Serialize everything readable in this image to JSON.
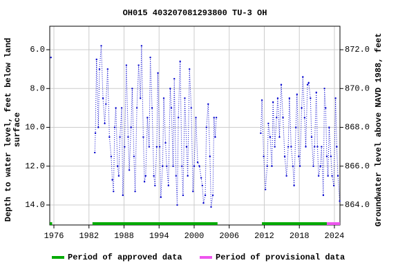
{
  "chart_data": {
    "type": "scatter",
    "title": "OH015 403207081293800 TU-3 OH",
    "y_label": [
      "Depth to water level, feet below land",
      "surface"
    ],
    "y2_label": "Groundwater level above NAVD 1988, feet",
    "xlim": [
      1975.29,
      2024.95
    ],
    "xticks": [
      1976,
      1982,
      1988,
      1994,
      2000,
      2006,
      2012,
      2018,
      2024
    ],
    "ylim": [
      15.03,
      4.79
    ],
    "yticks": [
      {
        "value": 6,
        "label": "6.0"
      },
      {
        "value": 8,
        "label": "8.0"
      },
      {
        "value": 10,
        "label": "10.0"
      },
      {
        "value": 12,
        "label": "12.0"
      },
      {
        "value": 14,
        "label": "14.0"
      }
    ],
    "y2lim": [
      862.97,
      873.21
    ],
    "y2ticks": [
      {
        "value": 864,
        "label": "864.0"
      },
      {
        "value": 866,
        "label": "866.0"
      },
      {
        "value": 868,
        "label": "868.0"
      },
      {
        "value": 870,
        "label": "870.0"
      },
      {
        "value": 872,
        "label": "872.0"
      }
    ],
    "grid": true,
    "series": [
      {
        "color": "#0000cc",
        "x": [
          1975.5,
          1980,
          1983.0,
          1983.1,
          1983.3,
          1983.6,
          1983.8,
          1984.1,
          1984.4,
          1984.7,
          1984.9,
          1985.2,
          1985.5,
          1985.8,
          1986.0,
          1986.2,
          1986.4,
          1986.6,
          1986.9,
          1987.1,
          1987.3,
          1987.6,
          1987.8,
          1988.1,
          1988.4,
          1988.7,
          1988.9,
          1989.2,
          1989.4,
          1989.7,
          1989.9,
          1990.2,
          1990.5,
          1990.8,
          1991.0,
          1991.3,
          1991.5,
          1991.7,
          1992.0,
          1992.3,
          1992.5,
          1992.8,
          1993.1,
          1993.3,
          1993.6,
          1993.8,
          1994.1,
          1994.3,
          1994.6,
          1994.8,
          1995.1,
          1995.3,
          1995.6,
          1995.9,
          1996.1,
          1996.4,
          1996.6,
          1996.9,
          1997.1,
          1997.3,
          1997.6,
          1997.9,
          1998.1,
          1998.4,
          1998.7,
          1998.9,
          1999.2,
          1999.5,
          1999.8,
          2000.0,
          2000.3,
          2000.6,
          2000.9,
          2001.2,
          2001.4,
          2001.6,
          2001.9,
          2002.1,
          2002.4,
          2002.7,
          2002.9,
          2003.2,
          2003.4,
          2003.6,
          2003.8,
          2008,
          2011.4,
          2011.6,
          2011.9,
          2012.2,
          2012.5,
          2012.7,
          2013.0,
          2013.3,
          2013.5,
          2013.8,
          2014.1,
          2014.3,
          2014.6,
          2014.9,
          2015.2,
          2015.5,
          2015.8,
          2016.1,
          2016.3,
          2016.6,
          2016.9,
          2017.1,
          2017.4,
          2017.6,
          2017.9,
          2018.1,
          2018.4,
          2018.6,
          2018.9,
          2019.1,
          2019.4,
          2019.6,
          2019.9,
          2020.1,
          2020.4,
          2020.6,
          2020.9,
          2021.1,
          2021.3,
          2021.6,
          2021.8,
          2022.1,
          2022.3,
          2022.5,
          2022.7,
          2022.9,
          2023.1,
          2023.4,
          2023.6,
          2023.9,
          2024.2,
          2024.4,
          2024.6,
          2024.9
        ],
        "values": [
          6.4,
          null,
          11.3,
          10.3,
          6.5,
          10.0,
          7.0,
          5.8,
          8.5,
          9.8,
          8.8,
          7.0,
          10.5,
          11.5,
          12.7,
          13.3,
          10.0,
          9.0,
          12.0,
          12.5,
          10.5,
          9.0,
          13.5,
          11.0,
          6.8,
          10.5,
          12.2,
          10.0,
          8.0,
          11.5,
          13.3,
          9.0,
          6.8,
          8.5,
          5.8,
          10.5,
          12.8,
          12.5,
          9.5,
          11.0,
          6.4,
          9.0,
          12.5,
          13.0,
          11.0,
          7.2,
          11.0,
          13.6,
          12.0,
          8.5,
          10.8,
          12.0,
          13.0,
          8.0,
          9.0,
          12.0,
          7.5,
          12.5,
          14.0,
          9.5,
          6.6,
          12.0,
          13.5,
          8.5,
          11.0,
          12.5,
          7.0,
          9.0,
          13.3,
          12.0,
          9.5,
          11.8,
          12.0,
          12.6,
          13.0,
          13.9,
          13.5,
          10.0,
          8.8,
          11.5,
          14.1,
          13.5,
          9.5,
          10.5,
          9.5,
          null,
          10.3,
          8.6,
          11.5,
          13.2,
          12.0,
          9.8,
          10.5,
          12.0,
          8.7,
          11.0,
          9.5,
          8.5,
          10.5,
          7.8,
          9.5,
          11.5,
          12.5,
          11.0,
          8.5,
          11.0,
          12.0,
          13.0,
          10.0,
          8.3,
          11.5,
          12.0,
          9.0,
          7.4,
          9.5,
          11.0,
          7.8,
          7.7,
          8.5,
          10.5,
          12.0,
          11.0,
          8.2,
          11.0,
          12.5,
          12.0,
          11.0,
          13.5,
          8.0,
          9.0,
          11.5,
          12.5,
          10.0,
          11.5,
          12.5,
          13.0,
          8.5,
          11.0,
          12.5,
          13.8
        ]
      }
    ],
    "periods": [
      {
        "name": "Period of approved data",
        "color": "#00aa00",
        "ranges": [
          [
            1975.3,
            1975.7
          ],
          [
            1982.6,
            2004.0
          ],
          [
            2011.6,
            2022.7
          ]
        ]
      },
      {
        "name": "Period of provisional data",
        "color": "#ee55ee",
        "ranges": [
          [
            2022.7,
            2024.95
          ]
        ]
      }
    ]
  }
}
